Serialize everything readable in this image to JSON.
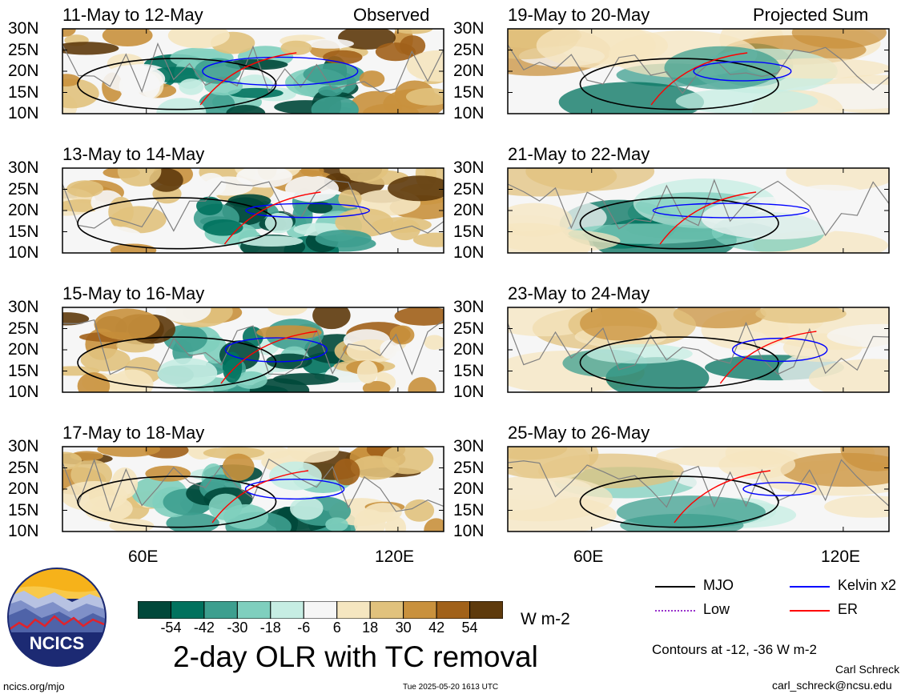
{
  "panels": [
    {
      "title": "11-May to 12-May",
      "corner": "Observed"
    },
    {
      "title": "19-May to 20-May",
      "corner": "Projected Sum"
    },
    {
      "title": "13-May to 14-May",
      "corner": ""
    },
    {
      "title": "21-May to 22-May",
      "corner": ""
    },
    {
      "title": "15-May to 16-May",
      "corner": ""
    },
    {
      "title": "23-May to 24-May",
      "corner": ""
    },
    {
      "title": "17-May to 18-May",
      "corner": ""
    },
    {
      "title": "25-May to 26-May",
      "corner": ""
    }
  ],
  "lat_labels": [
    "30N",
    "25N",
    "20N",
    "15N",
    "10N"
  ],
  "lon_labels": [
    "60E",
    "120E"
  ],
  "colorbar": {
    "values": [
      "-54",
      "-42",
      "-30",
      "-18",
      "-6",
      "6",
      "18",
      "30",
      "42",
      "54"
    ],
    "colors": [
      "#00483a",
      "#00725e",
      "#3d9f8f",
      "#7fcfbe",
      "#c6ede3",
      "#f6f6f6",
      "#f5e6c0",
      "#e1c27d",
      "#c9913d",
      "#a16119",
      "#5e3a0c"
    ],
    "unit": "W m-2"
  },
  "legend": {
    "mjo": {
      "label": "MJO",
      "color": "#000000"
    },
    "kelvin": {
      "label": "Kelvin x2",
      "color": "#0000ff"
    },
    "low": {
      "label": "Low",
      "color": "#9932cc"
    },
    "er": {
      "label": "ER",
      "color": "#ff0000"
    }
  },
  "main_title": "2-day OLR with TC removal",
  "contours_note": "Contours at -12, -36 W m-2",
  "author": "Carl Schreck",
  "email": "carl_schreck@ncsu.edu",
  "website": "ncics.org/mjo",
  "timestamp": "Tue 2025-05-20 1613 UTC",
  "logo_text": "NCICS"
}
